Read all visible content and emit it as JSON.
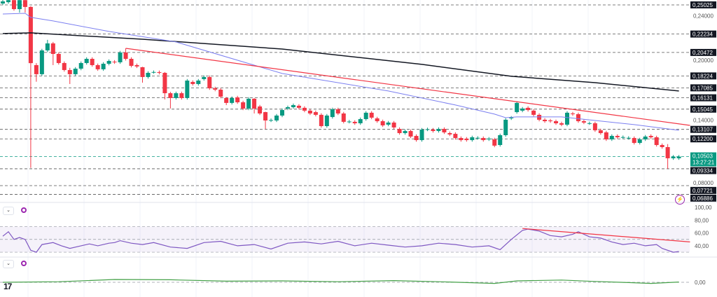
{
  "colors": {
    "up": "#089981",
    "down": "#f23645",
    "ma_long": "#131722",
    "ma_short": "#7b7ff0",
    "trend": "#f23645",
    "rsi": "#7e57c2",
    "osc": "#43a047",
    "current": "#089981"
  },
  "chart_data": {
    "type": "candlestick",
    "title": "",
    "price_axis_labels": [
      {
        "value": "0,25025",
        "price": 0.25025,
        "style": "boxed"
      },
      {
        "value": "0,24000",
        "price": 0.24,
        "style": "plain"
      },
      {
        "value": "0,22234",
        "price": 0.22234,
        "style": "boxed"
      },
      {
        "value": "0,20472",
        "price": 0.20472,
        "style": "boxed"
      },
      {
        "value": "0,20000",
        "price": 0.2,
        "style": "plain"
      },
      {
        "value": "0,18224",
        "price": 0.18224,
        "style": "boxed"
      },
      {
        "value": "0,17085",
        "price": 0.17085,
        "style": "boxed"
      },
      {
        "value": "0,16131",
        "price": 0.16131,
        "style": "boxed"
      },
      {
        "value": "0,15045",
        "price": 0.15045,
        "style": "boxed"
      },
      {
        "value": "0,14000",
        "price": 0.14,
        "style": "plain"
      },
      {
        "value": "0,13107",
        "price": 0.13107,
        "style": "boxed"
      },
      {
        "value": "0,12200",
        "price": 0.122,
        "style": "boxed"
      },
      {
        "value": "0,10503",
        "price": 0.10503,
        "style": "current"
      },
      {
        "value": "0,09334",
        "price": 0.09334,
        "style": "boxed"
      },
      {
        "value": "0,08000",
        "price": 0.08,
        "style": "plain"
      },
      {
        "value": "0,07721",
        "price": 0.07721,
        "style": "boxed"
      },
      {
        "value": "0,06886",
        "price": 0.06886,
        "style": "boxed"
      }
    ],
    "current_price": {
      "value": "0,10503",
      "countdown": "13:27:21"
    },
    "candles_ohlc_or_oc": [
      [
        0.2516,
        0.2536
      ],
      [
        0.2529,
        0.2548
      ],
      [
        0.2548,
        0.2462
      ],
      [
        0.2462,
        0.255,
        0.2429,
        0.2548
      ],
      [
        0.2548,
        0.255,
        0.2429,
        0.2483
      ],
      [
        0.2483,
        0.249,
        0.0942,
        0.1945
      ],
      [
        0.1926,
        0.1945,
        0.1767,
        0.1839
      ],
      [
        0.1839,
        0.2067
      ],
      [
        0.2067,
        0.2168,
        0.205,
        0.2134
      ],
      [
        0.2134,
        0.2148,
        0.1926,
        0.2033
      ],
      [
        0.2033,
        0.1946
      ],
      [
        0.1946,
        0.1879
      ],
      [
        0.1879,
        0.19,
        0.1745,
        0.1839
      ],
      [
        0.1839,
        0.1892
      ],
      [
        0.1892,
        0.1946
      ],
      [
        0.1946,
        0.1986
      ],
      [
        0.1986,
        0.1926
      ],
      [
        0.1926,
        0.1886
      ],
      [
        0.1886,
        0.1939
      ],
      [
        0.1939,
        0.1966
      ],
      [
        0.1959,
        0.1953
      ],
      [
        0.1953,
        0.2047
      ],
      [
        0.2047,
        0.2087,
        0.197,
        0.1986
      ],
      [
        0.1986,
        0.1919
      ],
      [
        0.1926,
        0.1913
      ],
      [
        0.1906,
        0.191,
        0.1758,
        0.1812
      ],
      [
        0.1812,
        0.1852
      ],
      [
        0.1859,
        0.186
      ],
      [
        0.1859,
        0.1852
      ],
      [
        0.1852,
        0.186,
        0.1597,
        0.1657
      ],
      [
        0.1657,
        0.167,
        0.151,
        0.1611
      ],
      [
        0.1611,
        0.1657
      ],
      [
        0.1657,
        0.1611
      ],
      [
        0.1611,
        0.1778
      ],
      [
        0.1765,
        0.1745
      ],
      [
        0.1745,
        0.1778
      ],
      [
        0.1792,
        0.1812
      ],
      [
        0.1812,
        0.1704
      ],
      [
        0.1704,
        0.1691
      ],
      [
        0.1691,
        0.1624
      ],
      [
        0.1611,
        0.162,
        0.1543,
        0.1564
      ],
      [
        0.1564,
        0.1611
      ],
      [
        0.1617,
        0.157
      ],
      [
        0.157,
        0.151
      ],
      [
        0.151,
        0.1604
      ],
      [
        0.1604,
        0.161,
        0.1463,
        0.151
      ],
      [
        0.153,
        0.1463
      ],
      [
        0.1476,
        0.148,
        0.1315,
        0.1396
      ],
      [
        0.1396,
        0.14
      ],
      [
        0.1396,
        0.1443
      ],
      [
        0.1443,
        0.1496
      ],
      [
        0.151,
        0.1523
      ],
      [
        0.1523,
        0.1543
      ],
      [
        0.1537,
        0.1517
      ],
      [
        0.1517,
        0.149
      ],
      [
        0.149,
        0.1463
      ],
      [
        0.1476,
        0.145
      ],
      [
        0.145,
        0.1342
      ],
      [
        0.1342,
        0.1443
      ],
      [
        0.1429,
        0.1503
      ],
      [
        0.1503,
        0.1463
      ],
      [
        0.1463,
        0.1383
      ],
      [
        0.1383,
        0.1386
      ],
      [
        0.1383,
        0.1369
      ],
      [
        0.1369,
        0.1409
      ],
      [
        0.1409,
        0.147
      ],
      [
        0.147,
        0.1423
      ],
      [
        0.1416,
        0.1389
      ],
      [
        0.1389,
        0.1349
      ],
      [
        0.1356,
        0.1376
      ],
      [
        0.1376,
        0.1329
      ],
      [
        0.1315,
        0.1275
      ],
      [
        0.1275,
        0.1295
      ],
      [
        0.1295,
        0.1242
      ],
      [
        0.1248,
        0.1208
      ],
      [
        0.1208,
        0.1309
      ],
      [
        0.1309,
        0.1312
      ],
      [
        0.1309,
        0.1295
      ],
      [
        0.1295,
        0.1315
      ],
      [
        0.1315,
        0.1282
      ],
      [
        0.1275,
        0.1262
      ],
      [
        0.1268,
        0.1228
      ],
      [
        0.1228,
        0.1208
      ],
      [
        0.1222,
        0.1208
      ],
      [
        0.1208,
        0.1235
      ],
      [
        0.1228,
        0.123
      ],
      [
        0.1228,
        0.1208
      ],
      [
        0.1215,
        0.1222
      ],
      [
        0.1215,
        0.1155
      ],
      [
        0.1161,
        0.1255
      ],
      [
        0.1255,
        0.1403
      ],
      [
        0.1416,
        0.1423
      ],
      [
        0.1476,
        0.1564
      ],
      [
        0.149,
        0.151
      ],
      [
        0.1517,
        0.1496
      ],
      [
        0.149,
        0.145
      ],
      [
        0.145,
        0.1403
      ],
      [
        0.1403,
        0.1389
      ],
      [
        0.1396,
        0.1389
      ],
      [
        0.1389,
        0.1369
      ],
      [
        0.1369,
        0.1356
      ],
      [
        0.1356,
        0.147
      ],
      [
        0.1463,
        0.1456
      ],
      [
        0.1456,
        0.1389
      ],
      [
        0.1389,
        0.1376
      ],
      [
        0.1369,
        0.137
      ],
      [
        0.1369,
        0.1302
      ],
      [
        0.1302,
        0.1275
      ],
      [
        0.1282,
        0.1215
      ],
      [
        0.1215,
        0.1248
      ],
      [
        0.1248,
        0.1235
      ],
      [
        0.1235,
        0.1237
      ],
      [
        0.1228,
        0.123
      ],
      [
        0.1228,
        0.1181
      ],
      [
        0.1181,
        0.1215
      ],
      [
        0.1215,
        0.1242
      ],
      [
        0.1248,
        0.1235
      ],
      [
        0.1235,
        0.1161
      ],
      [
        0.1161,
        0.1141
      ],
      [
        0.1141,
        0.117,
        0.0933,
        0.1034
      ],
      [
        0.1034,
        0.105
      ],
      [
        0.1034,
        0.105
      ]
    ],
    "ma_long": [
      [
        0,
        0.2228
      ],
      [
        5,
        0.2235
      ],
      [
        25,
        0.2174
      ],
      [
        50,
        0.208
      ],
      [
        75,
        0.1933
      ],
      [
        91,
        0.1819
      ],
      [
        106,
        0.1758
      ],
      [
        121,
        0.1678
      ]
    ],
    "ma_short": [
      [
        0,
        0.2415
      ],
      [
        4,
        0.2422
      ],
      [
        5,
        0.2383
      ],
      [
        9,
        0.2349
      ],
      [
        19,
        0.2248
      ],
      [
        31,
        0.2148
      ],
      [
        50,
        0.1846
      ],
      [
        69,
        0.1678
      ],
      [
        81,
        0.1544
      ],
      [
        88,
        0.1457
      ],
      [
        90,
        0.1423
      ],
      [
        92,
        0.143
      ],
      [
        100,
        0.143
      ],
      [
        106,
        0.1396
      ],
      [
        113,
        0.1356
      ],
      [
        121,
        0.1302
      ]
    ],
    "trendline": [
      [
        22,
        0.2087
      ],
      [
        123,
        0.1349
      ]
    ],
    "rsi": {
      "axis_labels": [
        {
          "value": "100,00",
          "v": 100
        },
        {
          "value": "80,00",
          "v": 80
        },
        {
          "value": "60,00",
          "v": 60
        },
        {
          "value": "40,00",
          "v": 40
        }
      ],
      "band": [
        30,
        70
      ],
      "series": [
        [
          0,
          55
        ],
        [
          1,
          62
        ],
        [
          2,
          50
        ],
        [
          3,
          53
        ],
        [
          4,
          50
        ],
        [
          5,
          33
        ],
        [
          6,
          30
        ],
        [
          7,
          42
        ],
        [
          9,
          45
        ],
        [
          10.5,
          40
        ],
        [
          12,
          36
        ],
        [
          14,
          40
        ],
        [
          15.5,
          43
        ],
        [
          17,
          40
        ],
        [
          19,
          44
        ],
        [
          20,
          45
        ],
        [
          21,
          48
        ],
        [
          23,
          44
        ],
        [
          25,
          42
        ],
        [
          27,
          45
        ],
        [
          30,
          38
        ],
        [
          33,
          36
        ],
        [
          36,
          45
        ],
        [
          39,
          47
        ],
        [
          42,
          40
        ],
        [
          45,
          42
        ],
        [
          48,
          35
        ],
        [
          51,
          44
        ],
        [
          54,
          46
        ],
        [
          57,
          43
        ],
        [
          60,
          47
        ],
        [
          63,
          40
        ],
        [
          66,
          44
        ],
        [
          69,
          41
        ],
        [
          72,
          38
        ],
        [
          75,
          40
        ],
        [
          78,
          44
        ],
        [
          81,
          42
        ],
        [
          84,
          38
        ],
        [
          87,
          40
        ],
        [
          89,
          34
        ],
        [
          91,
          50
        ],
        [
          93,
          64
        ],
        [
          94,
          66
        ],
        [
          96,
          63
        ],
        [
          98,
          56
        ],
        [
          100,
          54
        ],
        [
          102,
          58
        ],
        [
          103,
          62
        ],
        [
          105,
          54
        ],
        [
          107,
          52
        ],
        [
          109,
          46
        ],
        [
          111,
          42
        ],
        [
          113,
          44
        ],
        [
          115,
          40
        ],
        [
          117,
          42
        ],
        [
          118,
          36
        ],
        [
          120,
          30
        ],
        [
          121,
          31
        ]
      ],
      "trendline": [
        [
          93,
          67
        ],
        [
          123,
          46
        ]
      ]
    },
    "oscillator": {
      "axis_labels": [
        {
          "value": "0,00",
          "v": 0
        }
      ],
      "series": [
        [
          0,
          0
        ],
        [
          10,
          0.2
        ],
        [
          20,
          1
        ],
        [
          30,
          0.9
        ],
        [
          40,
          0.4
        ],
        [
          50,
          0.5
        ],
        [
          60,
          0.2
        ],
        [
          70,
          0.6
        ],
        [
          80,
          0.1
        ],
        [
          88,
          -0.4
        ],
        [
          92,
          0.5
        ],
        [
          100,
          0.8
        ],
        [
          106,
          0.3
        ],
        [
          112,
          -0.1
        ],
        [
          116,
          -0.4
        ],
        [
          121,
          0.1
        ]
      ]
    }
  }
}
